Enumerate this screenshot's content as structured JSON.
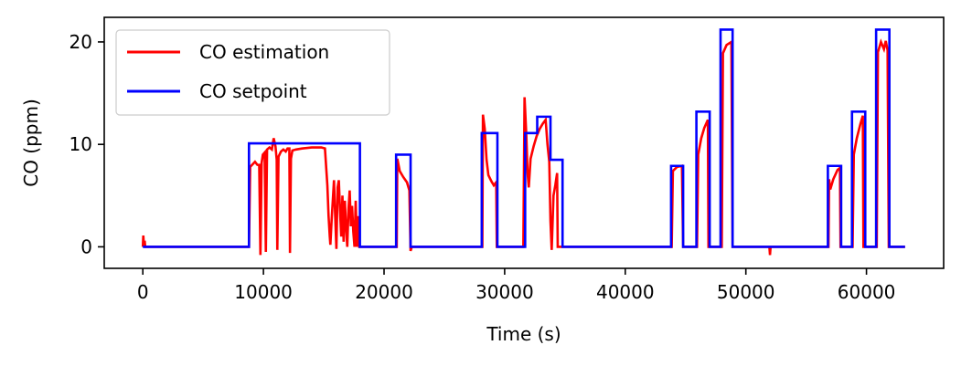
{
  "chart_data": {
    "type": "line",
    "title": "",
    "xlabel": "Time (s)",
    "ylabel": "CO (ppm)",
    "xlim": [
      -3200,
      66400
    ],
    "ylim": [
      -2.1,
      22.4
    ],
    "xticks": [
      0,
      10000,
      20000,
      30000,
      40000,
      50000,
      60000
    ],
    "xtick_labels": [
      "0",
      "10000",
      "20000",
      "30000",
      "40000",
      "50000",
      "60000"
    ],
    "yticks": [
      0,
      10,
      20
    ],
    "ytick_labels": [
      "0",
      "10",
      "20"
    ],
    "grid": false,
    "legend_position": "top-left",
    "series": [
      {
        "name": "CO estimation",
        "color": "#ff0000",
        "points": [
          [
            0,
            0.0
          ],
          [
            40,
            1.1
          ],
          [
            80,
            0.3
          ],
          [
            150,
            0.6
          ],
          [
            200,
            0.0
          ],
          [
            8800,
            0.0
          ],
          [
            8900,
            7.8
          ],
          [
            9300,
            8.3
          ],
          [
            9500,
            8.0
          ],
          [
            9650,
            8.0
          ],
          [
            9750,
            -0.8
          ],
          [
            9850,
            8.2
          ],
          [
            9950,
            9.0
          ],
          [
            10100,
            9.2
          ],
          [
            10200,
            -0.5
          ],
          [
            10300,
            9.5
          ],
          [
            10500,
            9.7
          ],
          [
            10700,
            9.5
          ],
          [
            10850,
            10.6
          ],
          [
            11000,
            9.8
          ],
          [
            11100,
            8.5
          ],
          [
            11150,
            -0.3
          ],
          [
            11250,
            8.8
          ],
          [
            11450,
            9.3
          ],
          [
            11650,
            9.5
          ],
          [
            11850,
            9.3
          ],
          [
            12000,
            9.6
          ],
          [
            12150,
            9.6
          ],
          [
            12200,
            -0.6
          ],
          [
            12280,
            8.6
          ],
          [
            12400,
            9.4
          ],
          [
            12700,
            9.5
          ],
          [
            13200,
            9.6
          ],
          [
            14000,
            9.7
          ],
          [
            14800,
            9.7
          ],
          [
            15100,
            9.6
          ],
          [
            15300,
            6.0
          ],
          [
            15400,
            3.0
          ],
          [
            15500,
            1.0
          ],
          [
            15550,
            0.2
          ],
          [
            15650,
            2.5
          ],
          [
            15750,
            4.5
          ],
          [
            15850,
            6.5
          ],
          [
            15950,
            3.0
          ],
          [
            16050,
            -0.2
          ],
          [
            16150,
            5.8
          ],
          [
            16250,
            6.5
          ],
          [
            16350,
            3.5
          ],
          [
            16450,
            1.0
          ],
          [
            16550,
            5.0
          ],
          [
            16650,
            0.5
          ],
          [
            16750,
            4.5
          ],
          [
            16850,
            2.0
          ],
          [
            16950,
            0.0
          ],
          [
            17050,
            3.6
          ],
          [
            17150,
            5.5
          ],
          [
            17250,
            2.0
          ],
          [
            17350,
            4.0
          ],
          [
            17450,
            1.5
          ],
          [
            17550,
            0.0
          ],
          [
            17650,
            4.5
          ],
          [
            17750,
            0.0
          ],
          [
            17850,
            3.0
          ],
          [
            17950,
            0.0
          ],
          [
            18000,
            0.0
          ],
          [
            21050,
            0.0
          ],
          [
            21100,
            8.6
          ],
          [
            21300,
            7.4
          ],
          [
            21600,
            6.8
          ],
          [
            21900,
            6.3
          ],
          [
            22100,
            5.5
          ],
          [
            22200,
            -0.4
          ],
          [
            22300,
            0.0
          ],
          [
            28150,
            0.0
          ],
          [
            28200,
            12.9
          ],
          [
            28350,
            11.5
          ],
          [
            28500,
            8.5
          ],
          [
            28650,
            7.0
          ],
          [
            28900,
            6.4
          ],
          [
            29100,
            6.0
          ],
          [
            29300,
            6.3
          ],
          [
            29350,
            0.0
          ],
          [
            31550,
            0.0
          ],
          [
            31650,
            14.6
          ],
          [
            31800,
            10.8
          ],
          [
            31900,
            7.2
          ],
          [
            32000,
            5.8
          ],
          [
            32150,
            8.6
          ],
          [
            32400,
            9.8
          ],
          [
            32650,
            10.8
          ],
          [
            32900,
            11.5
          ],
          [
            33150,
            12.0
          ],
          [
            33400,
            12.4
          ],
          [
            33550,
            10.0
          ],
          [
            33700,
            8.3
          ],
          [
            33800,
            2.5
          ],
          [
            33900,
            -0.3
          ],
          [
            34050,
            5.0
          ],
          [
            34200,
            6.0
          ],
          [
            34350,
            7.2
          ],
          [
            34400,
            0.0
          ],
          [
            43850,
            0.0
          ],
          [
            43950,
            7.4
          ],
          [
            44300,
            7.8
          ],
          [
            44700,
            7.9
          ],
          [
            44800,
            0.0
          ],
          [
            45950,
            0.0
          ],
          [
            46050,
            9.0
          ],
          [
            46300,
            10.6
          ],
          [
            46550,
            11.6
          ],
          [
            46850,
            12.4
          ],
          [
            46900,
            0.0
          ],
          [
            48000,
            0.0
          ],
          [
            48100,
            18.9
          ],
          [
            48400,
            19.7
          ],
          [
            48800,
            20.0
          ],
          [
            48900,
            0.0
          ],
          [
            51950,
            0.0
          ],
          [
            52000,
            -0.8
          ],
          [
            52050,
            0.0
          ],
          [
            56850,
            0.0
          ],
          [
            56900,
            6.6
          ],
          [
            57000,
            5.6
          ],
          [
            57250,
            6.6
          ],
          [
            57600,
            7.5
          ],
          [
            57800,
            7.7
          ],
          [
            57850,
            0.0
          ],
          [
            58850,
            0.0
          ],
          [
            58950,
            9.0
          ],
          [
            59200,
            10.6
          ],
          [
            59500,
            12.0
          ],
          [
            59700,
            12.8
          ],
          [
            59750,
            0.0
          ],
          [
            60850,
            0.0
          ],
          [
            60950,
            19.0
          ],
          [
            61200,
            20.0
          ],
          [
            61450,
            19.3
          ],
          [
            61600,
            20.1
          ],
          [
            61750,
            19.2
          ],
          [
            61850,
            0.0
          ],
          [
            63200,
            0.0
          ]
        ]
      },
      {
        "name": "CO setpoint",
        "color": "#0000ff",
        "points": [
          [
            0,
            0.0
          ],
          [
            8800,
            0.0
          ],
          [
            8800,
            10.1
          ],
          [
            18000,
            10.1
          ],
          [
            18000,
            0.0
          ],
          [
            21000,
            0.0
          ],
          [
            21000,
            9.0
          ],
          [
            22200,
            9.0
          ],
          [
            22200,
            0.0
          ],
          [
            28100,
            0.0
          ],
          [
            28100,
            11.1
          ],
          [
            29400,
            11.1
          ],
          [
            29400,
            0.0
          ],
          [
            31700,
            0.0
          ],
          [
            31700,
            11.1
          ],
          [
            32700,
            11.1
          ],
          [
            32700,
            12.7
          ],
          [
            33800,
            12.7
          ],
          [
            33800,
            8.5
          ],
          [
            34800,
            8.5
          ],
          [
            34800,
            0.0
          ],
          [
            43800,
            0.0
          ],
          [
            43800,
            7.9
          ],
          [
            44800,
            7.9
          ],
          [
            44800,
            0.0
          ],
          [
            45900,
            0.0
          ],
          [
            45900,
            13.2
          ],
          [
            47000,
            13.2
          ],
          [
            47000,
            0.0
          ],
          [
            47900,
            0.0
          ],
          [
            47900,
            21.2
          ],
          [
            48900,
            21.2
          ],
          [
            48900,
            0.0
          ],
          [
            56800,
            0.0
          ],
          [
            56800,
            7.9
          ],
          [
            57900,
            7.9
          ],
          [
            57900,
            0.0
          ],
          [
            58800,
            0.0
          ],
          [
            58800,
            13.2
          ],
          [
            59900,
            13.2
          ],
          [
            59900,
            0.0
          ],
          [
            60800,
            0.0
          ],
          [
            60800,
            21.2
          ],
          [
            61900,
            21.2
          ],
          [
            61900,
            0.0
          ],
          [
            63200,
            0.0
          ]
        ]
      }
    ]
  }
}
